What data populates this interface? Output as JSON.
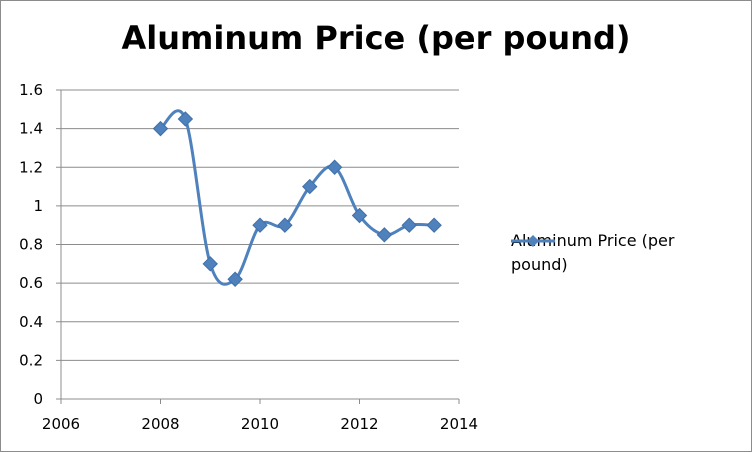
{
  "chart_data": {
    "type": "line",
    "title": "Aluminum Price (per pound)",
    "xlabel": "",
    "ylabel": "",
    "xlim": [
      2006,
      2014
    ],
    "ylim": [
      0,
      1.6
    ],
    "x_ticks": [
      2006,
      2008,
      2010,
      2012,
      2014
    ],
    "y_ticks": [
      0,
      0.2,
      0.4,
      0.6,
      0.8,
      1,
      1.2,
      1.4,
      1.6
    ],
    "grid": true,
    "legend_position": "right",
    "smoothed": true,
    "marker": "diamond",
    "series": [
      {
        "name": "Aluminum Price (per pound)",
        "color": "#4f81bd",
        "x": [
          2008,
          2008.5,
          2009,
          2009.5,
          2010,
          2010.5,
          2011,
          2011.5,
          2012,
          2012.5,
          2013,
          2013.5
        ],
        "y": [
          1.4,
          1.45,
          0.7,
          0.62,
          0.9,
          0.9,
          1.1,
          1.2,
          0.95,
          0.85,
          0.9,
          0.9
        ]
      }
    ]
  }
}
